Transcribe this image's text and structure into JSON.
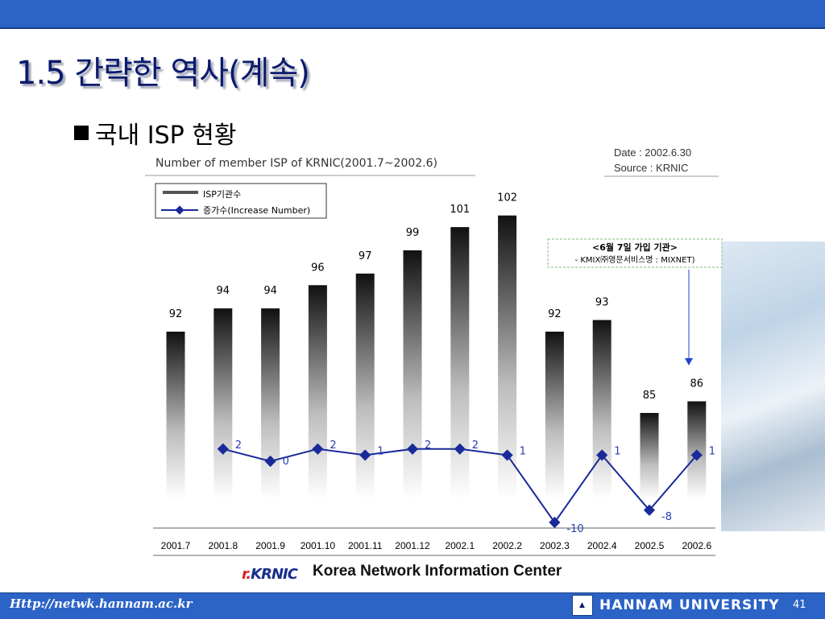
{
  "slide": {
    "title": "1.5 간략한 역사(계속)",
    "bullet": "국내 ISP 현황",
    "page_number": "41"
  },
  "chart_meta": {
    "date_line": "Date :  2002.6.30",
    "source_line": "Source :  KRNIC",
    "legend_isp": "ISP기관수",
    "legend_increase": "증가수(Increase Number)",
    "callout_title": "<6월 7일 가입 기관>",
    "callout_text": "- KMIX㈜영문서비스명 : MIXNET)"
  },
  "chart_data": {
    "type": "bar",
    "title": "Number of member ISP of KRNIC(2001.7~2002.6)",
    "categories": [
      "2001.7",
      "2001.8",
      "2001.9",
      "2001.10",
      "2001.11",
      "2001.12",
      "2002.1",
      "2002.2",
      "2002.3",
      "2002.4",
      "2002.5",
      "2002.6"
    ],
    "series": [
      {
        "name": "ISP기관수",
        "type": "bar",
        "values": [
          92,
          94,
          94,
          96,
          97,
          99,
          101,
          102,
          92,
          93,
          85,
          86
        ]
      },
      {
        "name": "증가수(Increase Number)",
        "type": "line",
        "values": [
          null,
          2,
          0,
          2,
          1,
          2,
          2,
          1,
          -10,
          1,
          -8,
          1
        ]
      }
    ],
    "line_color": "#1a2a9a",
    "bar_gradient": [
      "#111111",
      "#ffffff"
    ]
  },
  "footer": {
    "url": "Http://netwk.hannam.ac.kr",
    "university": "HANNAM  UNIVERSITY",
    "org_logo": "KRNIC",
    "org_name": "Korea Network Information Center"
  },
  "colors": {
    "top_bar": "#2b63c6",
    "title": "#0b1a6e",
    "line_series": "#1a2a9a",
    "callout_border": "#7fbf7f"
  }
}
